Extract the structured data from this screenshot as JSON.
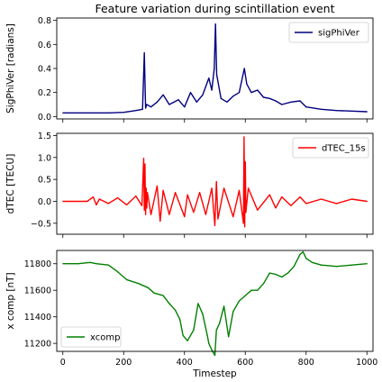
{
  "chart_data": [
    {
      "type": "line",
      "title": "Feature variation during scintillation event",
      "xlabel": "",
      "ylabel": "SigPhiVer [radians]",
      "xlim": [
        -20,
        1020
      ],
      "ylim": [
        -0.02,
        0.82
      ],
      "xticks": [
        0,
        200,
        400,
        600,
        800,
        1000
      ],
      "xticks_labeled": false,
      "yticks": [
        0.0,
        0.2,
        0.4,
        0.6,
        0.8
      ],
      "ytick_labels": [
        "0.0",
        "0.2",
        "0.4",
        "0.6",
        "0.8"
      ],
      "legend_position": "top-right",
      "grid": false,
      "series": [
        {
          "name": "sigPhiVer",
          "color": "#00007f",
          "x": [
            0,
            50,
            100,
            150,
            200,
            240,
            262,
            268,
            272,
            276,
            290,
            310,
            330,
            350,
            380,
            400,
            420,
            440,
            460,
            480,
            490,
            498,
            502,
            506,
            520,
            540,
            560,
            580,
            597,
            605,
            620,
            640,
            660,
            680,
            700,
            720,
            750,
            780,
            800,
            850,
            900,
            950,
            1000
          ],
          "values": [
            0.03,
            0.03,
            0.03,
            0.03,
            0.035,
            0.05,
            0.06,
            0.53,
            0.07,
            0.1,
            0.08,
            0.12,
            0.18,
            0.1,
            0.14,
            0.08,
            0.2,
            0.12,
            0.18,
            0.32,
            0.22,
            0.4,
            0.77,
            0.35,
            0.15,
            0.12,
            0.17,
            0.2,
            0.4,
            0.27,
            0.2,
            0.22,
            0.16,
            0.15,
            0.13,
            0.1,
            0.12,
            0.13,
            0.08,
            0.06,
            0.05,
            0.045,
            0.04
          ]
        }
      ]
    },
    {
      "type": "line",
      "title": "",
      "xlabel": "",
      "ylabel": "dTEC [TECU]",
      "xlim": [
        -20,
        1020
      ],
      "ylim": [
        -0.75,
        1.55
      ],
      "xticks": [
        0,
        200,
        400,
        600,
        800,
        1000
      ],
      "xticks_labeled": false,
      "yticks": [
        -0.5,
        0.0,
        0.5,
        1.0,
        1.5
      ],
      "ytick_labels": [
        "−0.5",
        "0.0",
        "0.5",
        "1.0",
        "1.5"
      ],
      "legend_position": "top-right",
      "grid": false,
      "series": [
        {
          "name": "dTEC_15s",
          "color": "#ff0000",
          "x": [
            0,
            50,
            80,
            100,
            110,
            120,
            150,
            180,
            210,
            240,
            260,
            266,
            268,
            270,
            272,
            274,
            276,
            278,
            290,
            310,
            320,
            330,
            350,
            370,
            400,
            410,
            430,
            450,
            470,
            490,
            500,
            505,
            510,
            530,
            560,
            580,
            594,
            596,
            598,
            600,
            602,
            610,
            640,
            680,
            700,
            720,
            750,
            780,
            800,
            850,
            900,
            950,
            1000
          ],
          "values": [
            0.0,
            0.0,
            0.0,
            0.1,
            -0.08,
            0.05,
            -0.05,
            0.08,
            -0.08,
            0.12,
            -0.1,
            0.98,
            -0.2,
            0.85,
            -0.3,
            0.3,
            -0.15,
            0.2,
            -0.3,
            0.35,
            -0.45,
            0.25,
            -0.3,
            0.2,
            -0.35,
            0.15,
            -0.25,
            0.2,
            -0.3,
            0.3,
            -0.55,
            0.45,
            -0.4,
            0.3,
            -0.35,
            0.25,
            -0.5,
            1.47,
            -0.58,
            0.9,
            -0.25,
            0.3,
            -0.2,
            0.15,
            -0.15,
            0.1,
            -0.1,
            0.1,
            -0.05,
            0.05,
            -0.05,
            0.05,
            0.0
          ]
        }
      ]
    },
    {
      "type": "line",
      "title": "",
      "xlabel": "Timestep",
      "ylabel": "x comp [nT]",
      "xlim": [
        -20,
        1020
      ],
      "ylim": [
        11140,
        11900
      ],
      "xticks": [
        0,
        200,
        400,
        600,
        800,
        1000
      ],
      "xticks_labeled": true,
      "xtick_labels": [
        "0",
        "200",
        "400",
        "600",
        "800",
        "1000"
      ],
      "yticks": [
        11200,
        11400,
        11600,
        11800
      ],
      "ytick_labels": [
        "11200",
        "11400",
        "11600",
        "11800"
      ],
      "legend_position": "bottom-left",
      "grid": false,
      "series": [
        {
          "name": "xcomp",
          "color": "#008000",
          "x": [
            0,
            50,
            90,
            110,
            150,
            180,
            210,
            250,
            280,
            300,
            330,
            350,
            370,
            385,
            395,
            410,
            430,
            445,
            460,
            475,
            480,
            490,
            500,
            505,
            515,
            530,
            545,
            560,
            580,
            600,
            620,
            640,
            660,
            680,
            700,
            720,
            740,
            760,
            780,
            790,
            800,
            820,
            850,
            900,
            950,
            1000
          ],
          "values": [
            11800,
            11800,
            11810,
            11800,
            11790,
            11740,
            11680,
            11650,
            11620,
            11580,
            11560,
            11500,
            11450,
            11380,
            11260,
            11220,
            11300,
            11500,
            11420,
            11260,
            11200,
            11150,
            11110,
            11300,
            11350,
            11480,
            11250,
            11440,
            11520,
            11560,
            11600,
            11600,
            11650,
            11730,
            11720,
            11700,
            11730,
            11780,
            11870,
            11890,
            11840,
            11810,
            11790,
            11780,
            11790,
            11800
          ]
        }
      ]
    }
  ]
}
